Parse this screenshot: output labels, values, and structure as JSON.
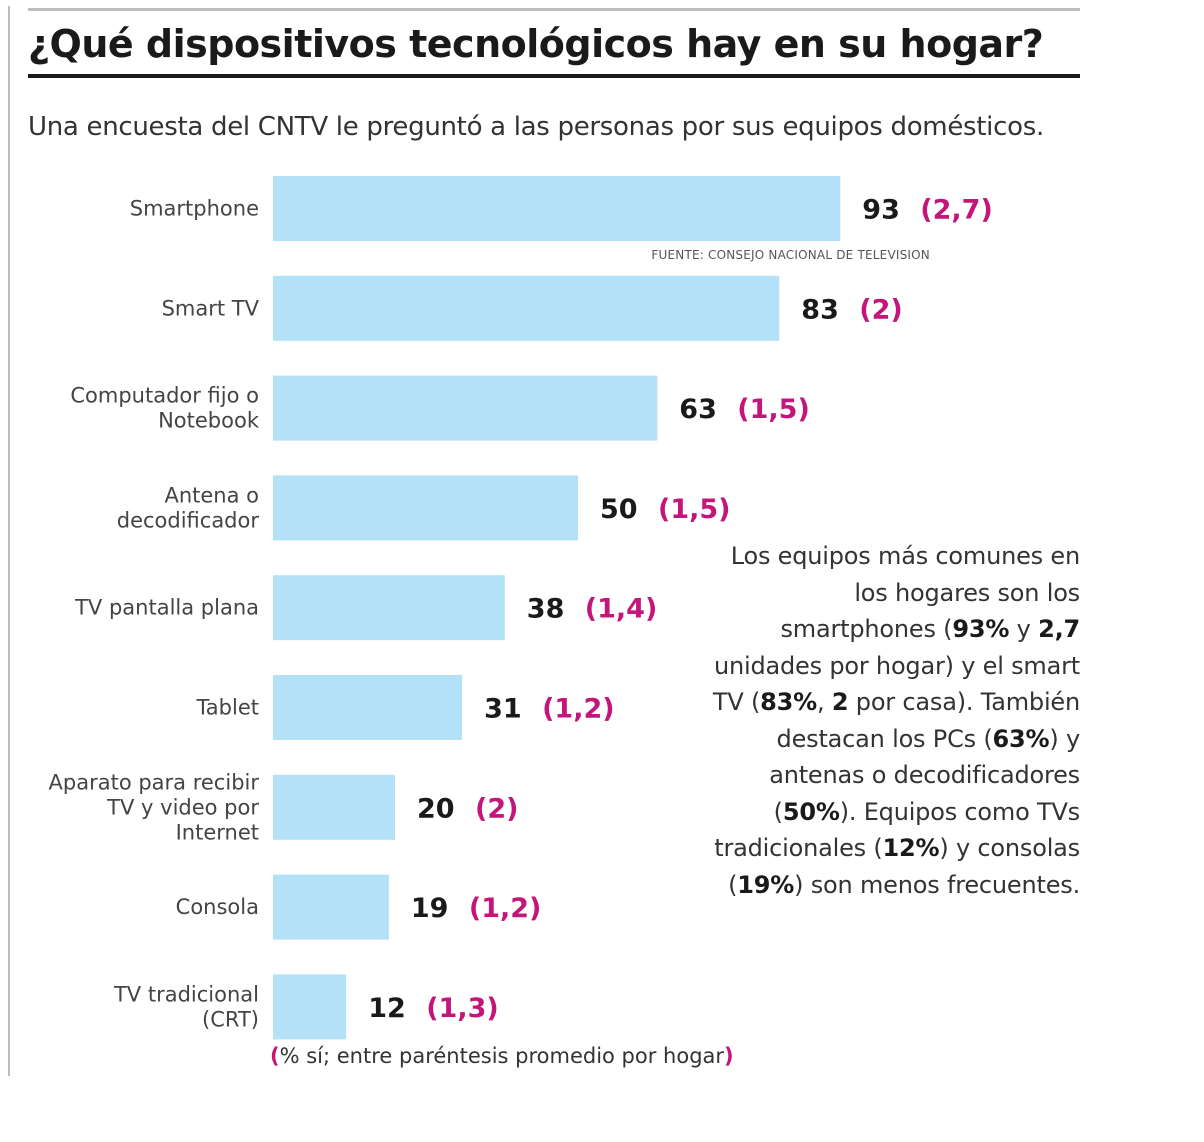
{
  "title": "¿Qué dispositivos tecnológicos hay en su hogar?",
  "subtitle": "Una encuesta del CNTV le preguntó a las personas por sus equipos domésticos.",
  "source": "FUENTE: CONSEJO NACIONAL DE TELEVISION",
  "footnote": {
    "open": "(",
    "text": "% sí; entre paréntesis promedio por hogar",
    "close": ")"
  },
  "note": [
    {
      "text": "Los equipos más comunes en los hogares son los smartphones (",
      "bold": false
    },
    {
      "text": "93%",
      "bold": true
    },
    {
      "text": " y ",
      "bold": false
    },
    {
      "text": "2,7",
      "bold": true
    },
    {
      "text": " unidades por hogar) y el smart TV (",
      "bold": false
    },
    {
      "text": "83%",
      "bold": true
    },
    {
      "text": ", ",
      "bold": false
    },
    {
      "text": "2",
      "bold": true
    },
    {
      "text": " por casa). También destacan los PCs (",
      "bold": false
    },
    {
      "text": "63%",
      "bold": true
    },
    {
      "text": ") y antenas o decodificadores (",
      "bold": false
    },
    {
      "text": "50%",
      "bold": true
    },
    {
      "text": "). Equipos como TVs tradicionales (",
      "bold": false
    },
    {
      "text": "12%",
      "bold": true
    },
    {
      "text": ") y consolas (",
      "bold": false
    },
    {
      "text": "19%",
      "bold": true
    },
    {
      "text": ") son menos frecuentes.",
      "bold": false
    }
  ],
  "colors": {
    "bar": "#b3e1f7",
    "value": "#1a1a1a",
    "average": "#c4157a"
  },
  "chart_data": {
    "type": "bar",
    "orientation": "horizontal",
    "categories": [
      [
        "Smartphone"
      ],
      [
        "Smart TV"
      ],
      [
        "Computador fijo o",
        "Notebook"
      ],
      [
        "Antena o",
        "decodificador"
      ],
      [
        "TV pantalla plana"
      ],
      [
        "Tablet"
      ],
      [
        "Aparato para recibir",
        "TV y video por",
        "Internet"
      ],
      [
        "Consola"
      ],
      [
        "TV tradicional",
        "(CRT)"
      ]
    ],
    "values": [
      93,
      83,
      63,
      50,
      38,
      31,
      20,
      19,
      12
    ],
    "value_labels": [
      "93",
      "83",
      "63",
      "50",
      "38",
      "31",
      "20",
      "19",
      "12"
    ],
    "averages": [
      "(2,7)",
      "(2)",
      "(1,5)",
      "(1,5)",
      "(1,4)",
      "(1,2)",
      "(2)",
      "(1,2)",
      "(1,3)"
    ],
    "xlim": [
      0,
      100
    ],
    "grid": false,
    "legend": "none"
  }
}
